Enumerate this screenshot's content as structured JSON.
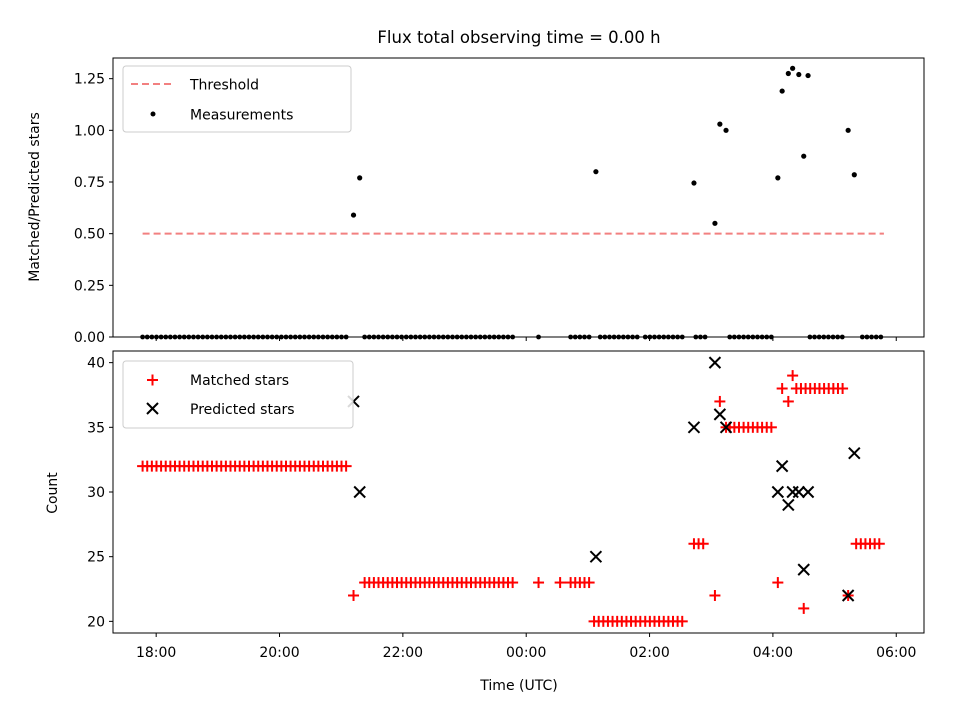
{
  "chart_data": [
    {
      "type": "scatter",
      "title": "Flux total observing time = 0.00 h",
      "xlabel": "",
      "ylabel": "Matched/Predicted stars",
      "xlim": [
        17.3,
        30.45
      ],
      "ylim": [
        0,
        1.35
      ],
      "x_ticks": [
        18,
        20,
        22,
        24,
        26,
        28,
        30
      ],
      "y_ticks": [
        0.0,
        0.25,
        0.5,
        0.75,
        1.0,
        1.25
      ],
      "y_tick_labels": [
        "0.00",
        "0.25",
        "0.50",
        "0.75",
        "1.00",
        "1.25"
      ],
      "legend": {
        "position": "top-left",
        "entries": [
          "Threshold",
          "Measurements"
        ]
      },
      "threshold": {
        "name": "Threshold",
        "y": 0.5,
        "x_range": [
          17.78,
          29.8
        ],
        "color": "#f28080"
      },
      "series": [
        {
          "name": "Measurements",
          "marker": "dot",
          "color": "#000000",
          "points": [
            [
              21.2,
              0.59
            ],
            [
              21.3,
              0.77
            ],
            [
              25.13,
              0.8
            ],
            [
              26.72,
              0.745
            ],
            [
              27.06,
              0.55
            ],
            [
              27.14,
              1.03
            ],
            [
              27.24,
              1.0
            ],
            [
              28.08,
              0.77
            ],
            [
              28.15,
              1.19
            ],
            [
              28.25,
              1.275
            ],
            [
              28.32,
              1.3
            ],
            [
              28.42,
              1.27
            ],
            [
              28.5,
              0.875
            ],
            [
              28.57,
              1.265
            ],
            [
              29.22,
              1.0
            ],
            [
              29.32,
              0.785
            ]
          ],
          "zero_runs": [
            [
              17.78,
              21.1,
              0.075
            ],
            [
              21.38,
              23.8,
              0.075
            ],
            [
              24.2,
              24.2,
              0.1
            ],
            [
              24.72,
              25.05,
              0.075
            ],
            [
              25.2,
              25.85,
              0.075
            ],
            [
              25.93,
              26.6,
              0.075
            ],
            [
              26.75,
              26.93,
              0.075
            ],
            [
              27.3,
              28.0,
              0.075
            ],
            [
              28.6,
              29.15,
              0.075
            ],
            [
              29.45,
              29.75,
              0.075
            ]
          ]
        }
      ]
    },
    {
      "type": "scatter",
      "title": "",
      "xlabel": "Time (UTC)",
      "ylabel": "Count",
      "xlim": [
        17.3,
        30.45
      ],
      "ylim": [
        19.1,
        40.9
      ],
      "x_ticks": [
        18,
        20,
        22,
        24,
        26,
        28,
        30
      ],
      "x_tick_labels": [
        "18:00",
        "20:00",
        "22:00",
        "00:00",
        "02:00",
        "04:00",
        "06:00"
      ],
      "y_ticks": [
        20,
        25,
        30,
        35,
        40
      ],
      "y_tick_labels": [
        "20",
        "25",
        "30",
        "35",
        "40"
      ],
      "legend": {
        "position": "top-left",
        "entries": [
          "Matched stars",
          "Predicted stars"
        ]
      },
      "series": [
        {
          "name": "Matched stars",
          "marker": "plus",
          "color": "#ff0000",
          "runs": [
            [
              17.78,
              21.1,
              0.075,
              32
            ],
            [
              21.38,
              23.8,
              0.075,
              23
            ],
            [
              24.72,
              25.05,
              0.075,
              23
            ],
            [
              25.1,
              25.85,
              0.075,
              20
            ],
            [
              25.93,
              26.6,
              0.075,
              20
            ],
            [
              26.72,
              26.93,
              0.075,
              26
            ],
            [
              27.3,
              28.0,
              0.075,
              35
            ],
            [
              28.38,
              29.15,
              0.075,
              38
            ],
            [
              29.35,
              29.75,
              0.075,
              26
            ]
          ],
          "points": [
            [
              21.2,
              22
            ],
            [
              24.2,
              23
            ],
            [
              24.55,
              23
            ],
            [
              27.06,
              22
            ],
            [
              27.14,
              37
            ],
            [
              27.24,
              35
            ],
            [
              28.08,
              23
            ],
            [
              28.15,
              38
            ],
            [
              28.25,
              37
            ],
            [
              28.32,
              39
            ],
            [
              28.5,
              21
            ],
            [
              29.22,
              22
            ]
          ]
        },
        {
          "name": "Predicted stars",
          "marker": "x",
          "color": "#000000",
          "points": [
            [
              21.2,
              37
            ],
            [
              21.3,
              30
            ],
            [
              25.13,
              25
            ],
            [
              26.72,
              35
            ],
            [
              27.06,
              40
            ],
            [
              27.14,
              36
            ],
            [
              27.24,
              35
            ],
            [
              28.08,
              30
            ],
            [
              28.15,
              32
            ],
            [
              28.25,
              29
            ],
            [
              28.32,
              30
            ],
            [
              28.42,
              30
            ],
            [
              28.5,
              24
            ],
            [
              28.57,
              30
            ],
            [
              29.22,
              22
            ],
            [
              29.32,
              33
            ]
          ]
        }
      ]
    }
  ]
}
